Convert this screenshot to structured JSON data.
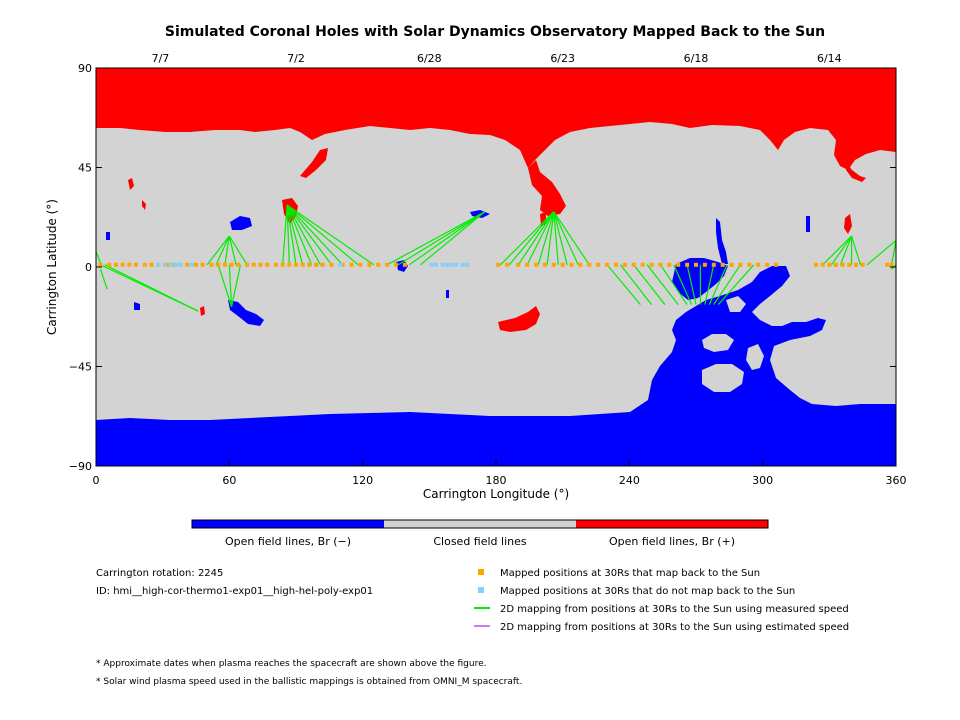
{
  "chart_data": {
    "type": "map",
    "title": "Simulated Coronal Holes with Solar Dynamics Observatory Mapped Back to the Sun",
    "xlabel": "Carrington Longitude (°)",
    "ylabel": "Carrington Latitude (°)",
    "xlim": [
      0,
      360
    ],
    "ylim": [
      -90,
      90
    ],
    "x_ticks": [
      "0",
      "60",
      "120",
      "180",
      "240",
      "300",
      "360"
    ],
    "x_tick_values": [
      0,
      60,
      120,
      180,
      240,
      300,
      360
    ],
    "y_ticks": [
      "90",
      "45",
      "0",
      "−45",
      "−90"
    ],
    "y_tick_values": [
      90,
      45,
      0,
      -45,
      -90
    ],
    "top_dates": [
      {
        "label": "7/7",
        "lon": 29
      },
      {
        "label": "7/2",
        "lon": 90
      },
      {
        "label": "6/28",
        "lon": 150
      },
      {
        "label": "6/23",
        "lon": 210
      },
      {
        "label": "6/18",
        "lon": 270
      },
      {
        "label": "6/14",
        "lon": 330
      }
    ],
    "colorbar": [
      {
        "label": "Open field lines, Br (−)",
        "color": "#0000ff"
      },
      {
        "label": "Closed field lines",
        "color": "#d3d3d3"
      },
      {
        "label": "Open field lines, Br (+)",
        "color": "#ff0000"
      }
    ],
    "mapped_positions_lon": [
      2,
      6,
      9,
      12,
      15,
      18,
      22,
      25,
      28,
      32,
      35,
      38,
      41,
      45,
      48,
      52,
      55,
      58,
      61,
      64,
      68,
      71,
      74,
      77,
      81,
      84,
      87,
      90,
      93,
      96,
      99,
      102,
      106,
      111,
      115,
      119,
      123,
      127,
      131,
      135,
      139,
      181,
      185,
      190,
      194,
      198,
      202,
      206,
      210,
      214,
      218,
      222,
      226,
      230,
      234,
      238,
      242,
      246,
      250,
      254,
      258,
      262,
      266,
      270,
      274,
      278,
      282,
      286,
      290,
      294,
      298,
      302,
      306,
      324,
      327,
      330,
      333,
      336,
      339,
      342,
      345,
      356,
      358
    ],
    "unmapped_positions_lon": [
      28,
      31,
      34,
      36,
      38,
      43,
      110,
      151,
      153,
      156,
      158,
      160,
      162,
      165,
      167
    ],
    "mapping_lines": [
      [
        2,
        1,
        46,
        -20
      ],
      [
        4,
        1,
        46,
        -20
      ],
      [
        2,
        2,
        -2,
        12
      ],
      [
        2,
        -1,
        5,
        -10
      ],
      [
        50,
        1,
        60,
        14
      ],
      [
        54,
        1,
        60,
        14
      ],
      [
        58,
        1,
        60,
        14
      ],
      [
        63,
        1,
        60,
        14
      ],
      [
        68,
        1,
        60,
        14
      ],
      [
        55,
        1,
        61,
        -18
      ],
      [
        60,
        1,
        61,
        -18
      ],
      [
        65,
        1,
        61,
        -18
      ],
      [
        84,
        1,
        86,
        28
      ],
      [
        87,
        1,
        86,
        28
      ],
      [
        90,
        1,
        86,
        28
      ],
      [
        93,
        1,
        86,
        28
      ],
      [
        97,
        1,
        86,
        28
      ],
      [
        101,
        1,
        86,
        28
      ],
      [
        106,
        1,
        86,
        28
      ],
      [
        111,
        1,
        86,
        28
      ],
      [
        118,
        1,
        86,
        28
      ],
      [
        125,
        1,
        86,
        28
      ],
      [
        131,
        1,
        175,
        25
      ],
      [
        136,
        1,
        175,
        25
      ],
      [
        141,
        1,
        175,
        25
      ],
      [
        146,
        1,
        175,
        25
      ],
      [
        182,
        1,
        206,
        25
      ],
      [
        186,
        1,
        206,
        25
      ],
      [
        190,
        1,
        206,
        25
      ],
      [
        194,
        1,
        206,
        25
      ],
      [
        199,
        1,
        206,
        25
      ],
      [
        203,
        1,
        206,
        25
      ],
      [
        208,
        1,
        206,
        25
      ],
      [
        212,
        1,
        206,
        25
      ],
      [
        217,
        1,
        206,
        25
      ],
      [
        222,
        1,
        206,
        25
      ],
      [
        230,
        1,
        245,
        -17
      ],
      [
        236,
        1,
        250,
        -17
      ],
      [
        242,
        1,
        256,
        -17
      ],
      [
        248,
        1,
        262,
        -17
      ],
      [
        254,
        1,
        266,
        -17
      ],
      [
        260,
        1,
        268,
        -17
      ],
      [
        266,
        1,
        270,
        -17
      ],
      [
        272,
        1,
        272,
        -17
      ],
      [
        278,
        1,
        274,
        -17
      ],
      [
        284,
        1,
        276,
        -17
      ],
      [
        290,
        1,
        278,
        -17
      ],
      [
        296,
        1,
        280,
        -17
      ],
      [
        327,
        1,
        340,
        14
      ],
      [
        331,
        1,
        340,
        14
      ],
      [
        335,
        1,
        340,
        14
      ],
      [
        340,
        1,
        340,
        14
      ],
      [
        344,
        1,
        340,
        14
      ],
      [
        358,
        1,
        360,
        12
      ],
      [
        347,
        1,
        360,
        12
      ],
      [
        360,
        1,
        358,
        -1
      ]
    ]
  },
  "legend": {
    "rotation": "Carrington rotation: 2245",
    "id": "ID: hmi__high-cor-thermo1-exp01__high-hel-poly-exp01",
    "items": [
      {
        "label": "Mapped positions at 30Rs that map back to the Sun",
        "color": "#ffa500",
        "marker": "square"
      },
      {
        "label": "Mapped positions at 30Rs that do not map back to the Sun",
        "color": "#87cefa",
        "marker": "square"
      },
      {
        "label": "2D mapping from positions at 30Rs to the Sun using measured speed",
        "color": "#00ee00",
        "marker": "line"
      },
      {
        "label": "2D mapping from positions at 30Rs to the Sun using estimated speed",
        "color": "#c080f0",
        "marker": "line"
      }
    ],
    "notes": [
      "* Approximate dates when plasma reaches the spacecraft are shown above the figure.",
      "* Solar wind plasma speed used in the ballistic mappings is obtained from OMNI_M spacecraft."
    ]
  }
}
